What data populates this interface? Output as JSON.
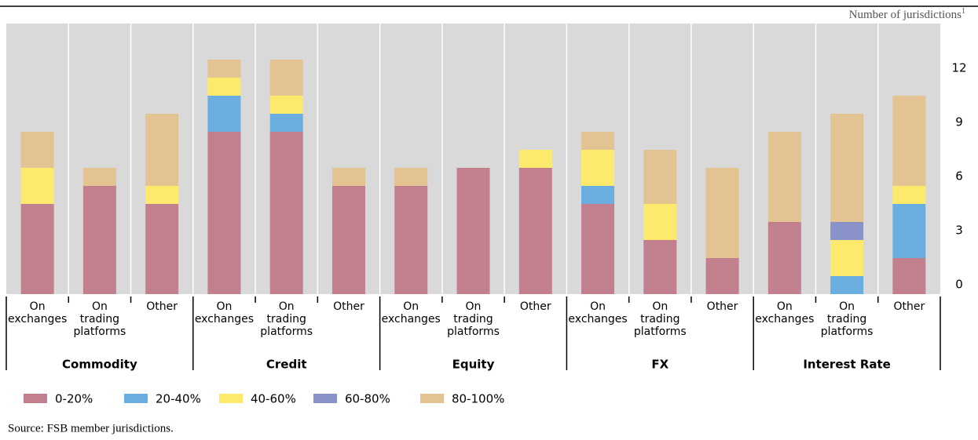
{
  "chart_data": {
    "type": "stacked_bar",
    "y_axis_label": "Number of jurisdictions",
    "y_axis_label_note": "1",
    "categories": [
      "On exchanges",
      "On trading platforms",
      "Other",
      "On exchanges",
      "On trading platforms",
      "Other",
      "On exchanges",
      "On trading platforms",
      "Other",
      "On exchanges",
      "On trading platforms",
      "Other",
      "On exchanges",
      "On trading platforms",
      "Other"
    ],
    "groups": [
      "Commodity",
      "Credit",
      "Equity",
      "FX",
      "Interest Rate"
    ],
    "series": [
      {
        "name": "0-20%",
        "color": "#c27f8d",
        "values": [
          5,
          6,
          5,
          9,
          9,
          6,
          6,
          7,
          7,
          5,
          3,
          2,
          4,
          0,
          2
        ]
      },
      {
        "name": "20-40%",
        "color": "#6aaee0",
        "values": [
          0,
          0,
          0,
          2,
          1,
          0,
          0,
          0,
          0,
          1,
          0,
          0,
          0,
          1,
          3
        ]
      },
      {
        "name": "40-60%",
        "color": "#fde96c",
        "values": [
          2,
          0,
          1,
          1,
          1,
          0,
          0,
          0,
          1,
          2,
          2,
          0,
          0,
          2,
          1
        ]
      },
      {
        "name": "60-80%",
        "color": "#8a93c9",
        "values": [
          0,
          0,
          0,
          0,
          0,
          0,
          0,
          0,
          0,
          0,
          0,
          0,
          0,
          1,
          0
        ]
      },
      {
        "name": "80-100%",
        "color": "#e3c392",
        "values": [
          2,
          1,
          4,
          1,
          2,
          1,
          1,
          0,
          0,
          1,
          3,
          5,
          5,
          6,
          5
        ]
      }
    ],
    "ylim": [
      0,
      15
    ],
    "yticks": [
      0,
      3,
      6,
      9,
      12
    ],
    "grid": false,
    "source": "Source: FSB member jurisdictions."
  }
}
